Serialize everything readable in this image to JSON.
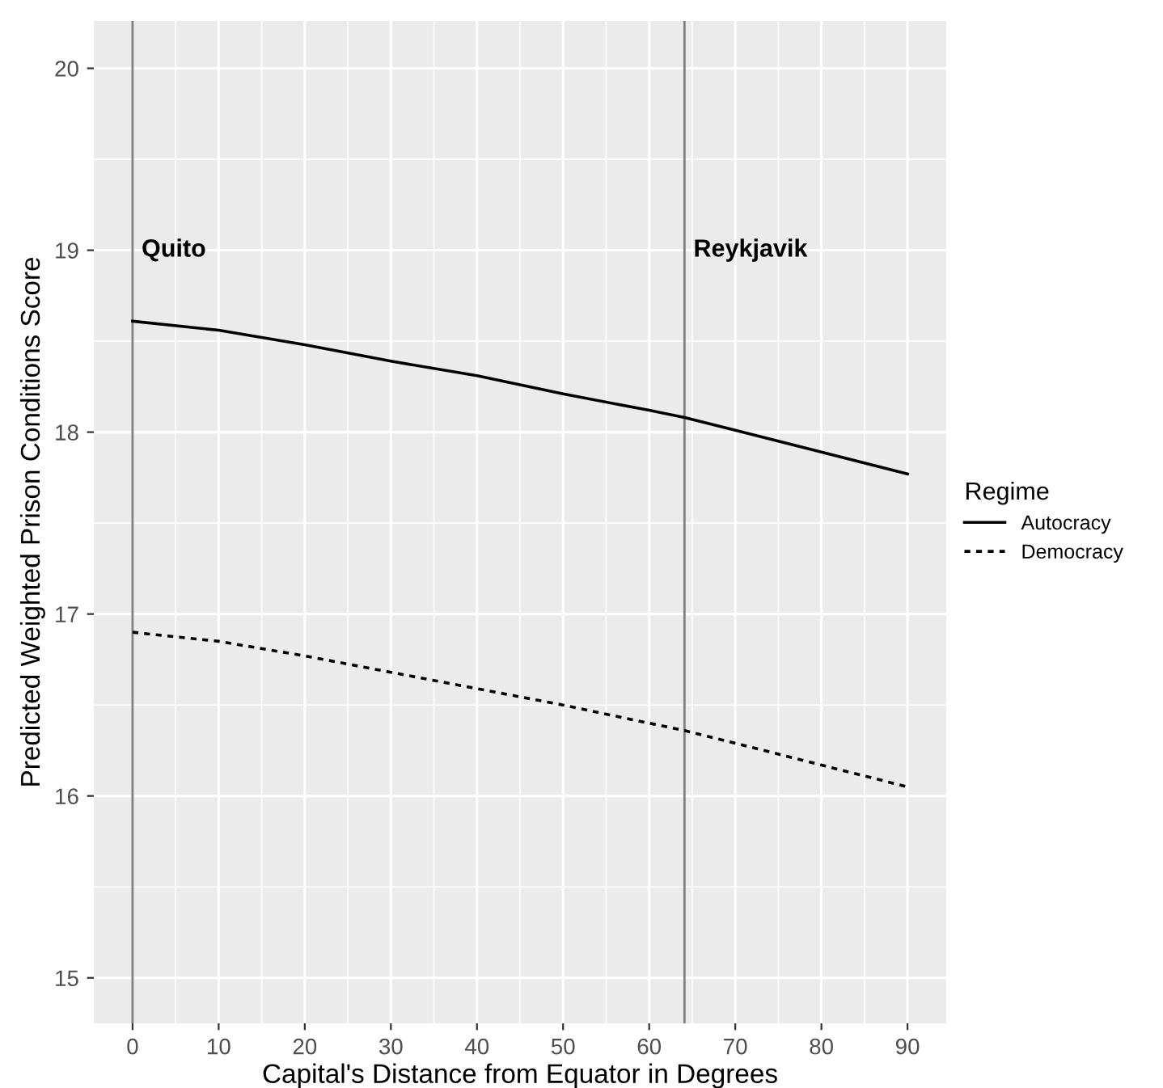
{
  "chart_data": {
    "type": "line",
    "xlabel": "Capital's Distance from Equator in Degrees",
    "ylabel": "Predicted Weighted Prison Conditions Score",
    "legend_title": "Regime",
    "legend": "right",
    "grid": true,
    "marker": "none",
    "x": [
      0,
      10,
      20,
      30,
      40,
      50,
      60,
      64.1,
      70,
      80,
      90
    ],
    "series": [
      {
        "name": "Autocracy",
        "color": "#000000",
        "line_style": "solid",
        "values": [
          18.61,
          18.56,
          18.48,
          18.39,
          18.31,
          18.21,
          18.12,
          18.08,
          18.01,
          17.89,
          17.77
        ]
      },
      {
        "name": "Democracy",
        "color": "#000000",
        "line_style": "dotted",
        "values": [
          16.9,
          16.85,
          16.77,
          16.68,
          16.59,
          16.5,
          16.4,
          16.36,
          16.29,
          16.17,
          16.05
        ]
      }
    ],
    "xlim": [
      -4.5,
      94.5
    ],
    "xticks": [
      0,
      10,
      20,
      30,
      40,
      50,
      60,
      70,
      80,
      90
    ],
    "ylim": [
      14.75,
      20.26
    ],
    "yticks": [
      15,
      16,
      17,
      18,
      19,
      20
    ],
    "ref_lines": [
      {
        "axis": "x",
        "value": 0,
        "color": "#7f7f7f"
      },
      {
        "axis": "x",
        "value": 64.1,
        "color": "#7f7f7f"
      }
    ],
    "annotations": [
      {
        "text": "Quito",
        "x": 0,
        "y": 19
      },
      {
        "text": "Reykjavik",
        "x": 64.1,
        "y": 19
      }
    ]
  }
}
